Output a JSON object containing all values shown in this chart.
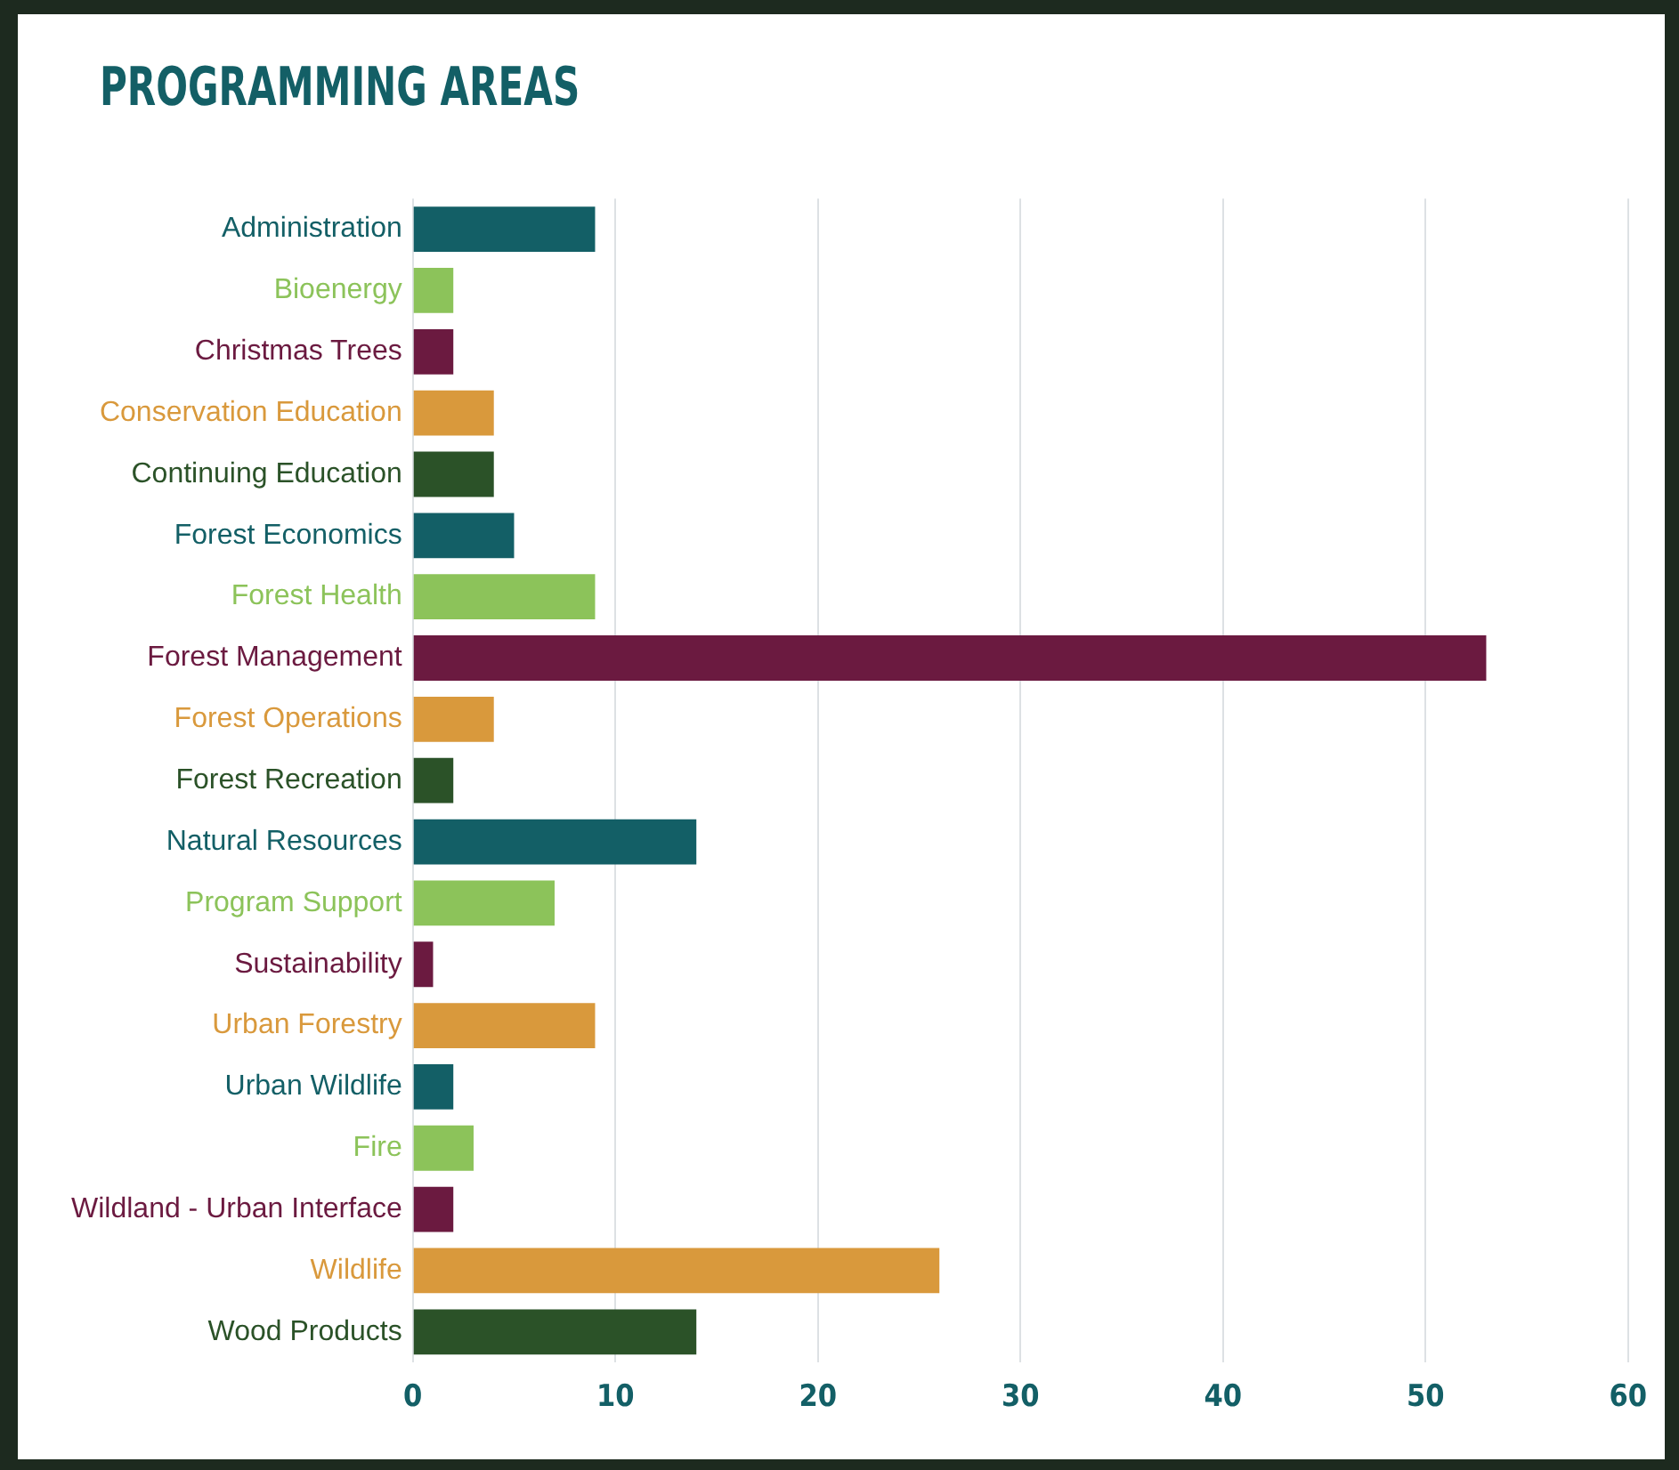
{
  "chart_data": {
    "type": "bar",
    "orientation": "horizontal",
    "title": "PROGRAMMING AREAS",
    "categories": [
      "Administration",
      "Bioenergy",
      "Christmas Trees",
      "Conservation Education",
      "Continuing Education",
      "Forest Economics",
      "Forest Health",
      "Forest Management",
      "Forest Operations",
      "Forest Recreation",
      "Natural Resources",
      "Program Support",
      "Sustainability",
      "Urban Forestry",
      "Urban Wildlife",
      "Fire",
      "Wildland - Urban Interface",
      "Wildlife",
      "Wood Products"
    ],
    "values": [
      9,
      2,
      2,
      4,
      4,
      5,
      9,
      53,
      4,
      2,
      14,
      7,
      1,
      9,
      2,
      3,
      2,
      26,
      14
    ],
    "colors": [
      "#135f66",
      "#8cc35a",
      "#6b1a40",
      "#d9993c",
      "#2b5228",
      "#135f66",
      "#8cc35a",
      "#6b1a40",
      "#d9993c",
      "#2b5228",
      "#135f66",
      "#8cc35a",
      "#6b1a40",
      "#d9993c",
      "#135f66",
      "#8cc35a",
      "#6b1a40",
      "#d9993c",
      "#2b5228"
    ],
    "xlim": [
      0,
      60
    ],
    "xticks": [
      0,
      10,
      20,
      30,
      40,
      50,
      60
    ],
    "grid": "x",
    "legend": false
  }
}
